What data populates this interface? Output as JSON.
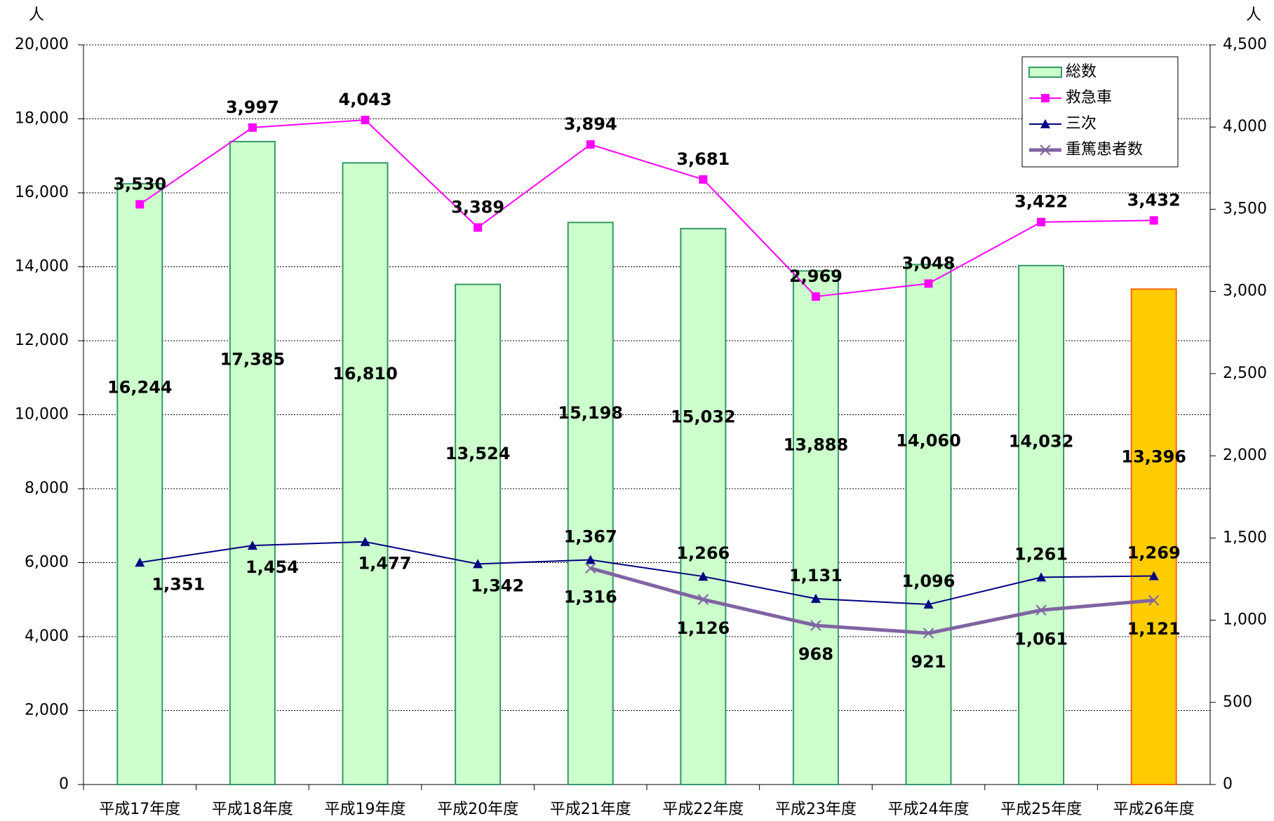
{
  "chart_data": {
    "type": "bar_line",
    "y_unit": "人",
    "y2_unit": "人",
    "categories": [
      "平成17年度",
      "平成18年度",
      "平成19年度",
      "平成20年度",
      "平成21年度",
      "平成22年度",
      "平成23年度",
      "平成24年度",
      "平成25年度",
      "平成26年度"
    ],
    "ylim": [
      0,
      20000
    ],
    "yticks": [
      0,
      {
        "value": 2000,
        "label": "2,000"
      },
      {
        "value": 4000,
        "label": "4,000"
      },
      {
        "value": 6000,
        "label": "6,000"
      },
      {
        "value": 8000,
        "label": "8,000"
      },
      {
        "value": 10000,
        "label": "10,000"
      },
      {
        "value": 12000,
        "label": "12,000"
      },
      {
        "value": 14000,
        "label": "14,000"
      },
      {
        "value": 16000,
        "label": "16,000"
      },
      {
        "value": 18000,
        "label": "18,000"
      },
      {
        "value": 20000,
        "label": "20,000"
      }
    ],
    "y2lim": [
      0,
      4500
    ],
    "y2ticks": [
      0,
      500,
      {
        "value": 1000,
        "label": "1,000"
      },
      {
        "value": 1500,
        "label": "1,500"
      },
      {
        "value": 2000,
        "label": "2,000"
      },
      {
        "value": 2500,
        "label": "2,500"
      },
      {
        "value": 3000,
        "label": "3,000"
      },
      {
        "value": 3500,
        "label": "3,500"
      },
      {
        "value": 4000,
        "label": "4,000"
      },
      {
        "value": 4500,
        "label": "4,500"
      }
    ],
    "grid": true,
    "legend": "upper right",
    "series": [
      {
        "name": "総数",
        "kind": "bar",
        "axis": "y",
        "colors": [
          "#ccffcc",
          "#ccffcc",
          "#ccffcc",
          "#ccffcc",
          "#ccffcc",
          "#ccffcc",
          "#ccffcc",
          "#ccffcc",
          "#ccffcc",
          "#ffcc00"
        ],
        "edgecolors": [
          "#339966",
          "#339966",
          "#339966",
          "#339966",
          "#339966",
          "#339966",
          "#339966",
          "#339966",
          "#339966",
          "#ff6600"
        ],
        "label_color": "#000000",
        "values": [
          16244,
          17385,
          16810,
          13524,
          15198,
          15032,
          13888,
          14060,
          14032,
          13396
        ],
        "value_labels": [
          "16,244",
          "17,385",
          "16,810",
          "13,524",
          "15,198",
          "15,032",
          "13,888",
          "14,060",
          "14,032",
          "13,396"
        ]
      },
      {
        "name": "救急車",
        "kind": "line",
        "axis": "y2",
        "color": "#ff00ff",
        "marker": "square",
        "label_color": "#ff00ff",
        "values": [
          3530,
          3997,
          4043,
          3389,
          3894,
          3681,
          2969,
          3048,
          3422,
          3432
        ],
        "value_labels": [
          "3,530",
          "3,997",
          "4,043",
          "3,389",
          "3,894",
          "3,681",
          "2,969",
          "3,048",
          "3,422",
          "3,432"
        ]
      },
      {
        "name": "三次",
        "kind": "line",
        "axis": "y2",
        "color": "#000080",
        "marker": "triangle",
        "label_color": "#0000ff",
        "values": [
          1351,
          1454,
          1477,
          1342,
          1367,
          1266,
          1131,
          1096,
          1261,
          1269
        ],
        "value_labels": [
          "1,351",
          "1,454",
          "1,477",
          "1,342",
          "1,367",
          "1,266",
          "1,131",
          "1,096",
          "1,261",
          "1,269"
        ]
      },
      {
        "name": "重篤患者数",
        "kind": "line",
        "axis": "y2",
        "color": "#8064a2",
        "marker": "x",
        "label_color": "#404040",
        "values": [
          null,
          null,
          null,
          null,
          1316,
          1126,
          968,
          921,
          1061,
          1121
        ],
        "value_labels": [
          null,
          null,
          null,
          null,
          "1,316",
          "1,126",
          "968",
          "921",
          "1,061",
          "1,121"
        ]
      }
    ]
  }
}
